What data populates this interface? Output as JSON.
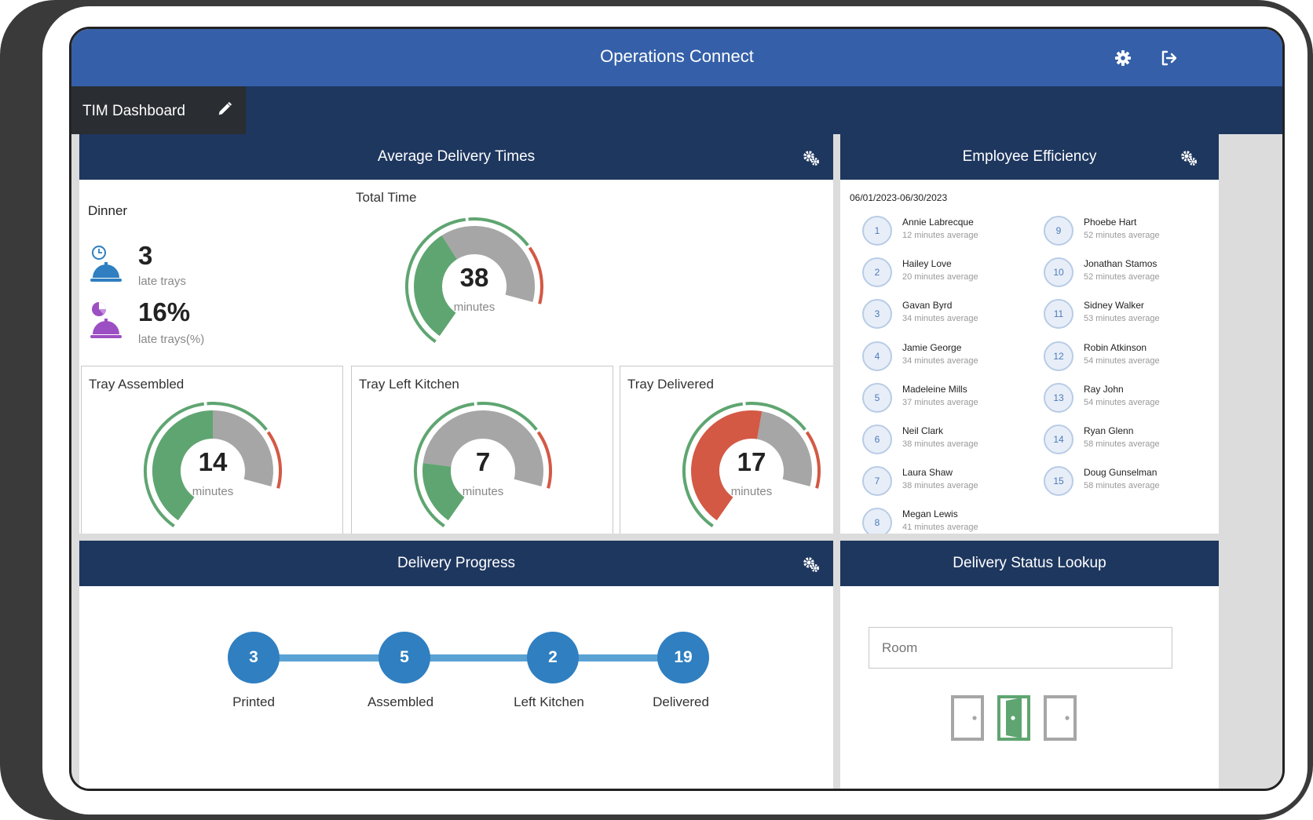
{
  "app": {
    "title": "Operations Connect",
    "icons": [
      "gear-icon",
      "logout-icon"
    ],
    "colors": {
      "header": "#3560a9",
      "nav": "#1e375f",
      "tab_active": "#2a2d31",
      "green": "#5fa571",
      "grey": "#a6a6a6",
      "red": "#d35944",
      "blue": "#2f7fc1"
    }
  },
  "tabs": [
    {
      "label": "TIM Dashboard"
    }
  ],
  "delivery_times": {
    "title": "Average Delivery Times",
    "meal": "Dinner",
    "late_trays": {
      "value": "3",
      "label": "late trays"
    },
    "late_trays_pct": {
      "value": "16%",
      "label": "late trays(%)"
    },
    "total": {
      "label": "Total Time",
      "value": "38",
      "unit": "minutes",
      "segments": [
        0.45,
        0.55
      ]
    },
    "gauges": [
      {
        "label": "Tray Assembled",
        "value": "14",
        "unit": "minutes",
        "segments": [
          0.58,
          0.42
        ]
      },
      {
        "label": "Tray Left Kitchen",
        "value": "7",
        "unit": "minutes",
        "segments": [
          0.25,
          0.75
        ]
      },
      {
        "label": "Tray Delivered",
        "value": "17",
        "unit": "minutes",
        "segments": [
          0.62,
          0.38
        ]
      }
    ]
  },
  "efficiency": {
    "title": "Employee Efficiency",
    "date_range": "06/01/2023-06/30/2023",
    "employees": [
      {
        "rank": "1",
        "name": "Annie Labrecque",
        "avg": "12 minutes average"
      },
      {
        "rank": "2",
        "name": "Hailey Love",
        "avg": "20 minutes average"
      },
      {
        "rank": "3",
        "name": "Gavan Byrd",
        "avg": "34 minutes average"
      },
      {
        "rank": "4",
        "name": "Jamie George",
        "avg": "34 minutes average"
      },
      {
        "rank": "5",
        "name": "Madeleine Mills",
        "avg": "37 minutes average"
      },
      {
        "rank": "6",
        "name": "Neil Clark",
        "avg": "38 minutes average"
      },
      {
        "rank": "7",
        "name": "Laura Shaw",
        "avg": "38 minutes average"
      },
      {
        "rank": "8",
        "name": "Megan Lewis",
        "avg": "41 minutes average"
      },
      {
        "rank": "9",
        "name": "Phoebe Hart",
        "avg": "52 minutes average"
      },
      {
        "rank": "10",
        "name": "Jonathan Stamos",
        "avg": "52 minutes average"
      },
      {
        "rank": "11",
        "name": "Sidney Walker",
        "avg": "53 minutes average"
      },
      {
        "rank": "12",
        "name": "Robin Atkinson",
        "avg": "54 minutes average"
      },
      {
        "rank": "13",
        "name": "Ray John",
        "avg": "54 minutes average"
      },
      {
        "rank": "14",
        "name": "Ryan Glenn",
        "avg": "58 minutes average"
      },
      {
        "rank": "15",
        "name": "Doug Gunselman",
        "avg": "58 minutes average"
      }
    ]
  },
  "progress": {
    "title": "Delivery Progress",
    "steps": [
      {
        "count": "3",
        "label": "Printed"
      },
      {
        "count": "5",
        "label": "Assembled"
      },
      {
        "count": "2",
        "label": "Left Kitchen"
      },
      {
        "count": "19",
        "label": "Delivered"
      }
    ]
  },
  "lookup": {
    "title": "Delivery Status Lookup",
    "room_placeholder": "Room",
    "doors": [
      {
        "icon": "door-closed-icon",
        "color": "#a6a6a6"
      },
      {
        "icon": "door-open-icon",
        "color": "#5fa571"
      },
      {
        "icon": "door-closed-icon",
        "color": "#a6a6a6"
      }
    ]
  }
}
